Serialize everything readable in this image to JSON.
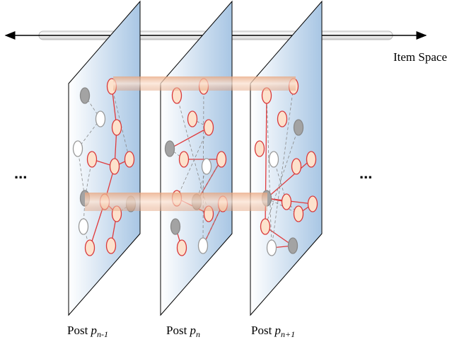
{
  "axis_label": "Item Space",
  "ellipsis_left": "...",
  "ellipsis_right": "...",
  "posts": [
    {
      "text": "Post",
      "symbol": "p",
      "subscript": "n-1"
    },
    {
      "text": "Post",
      "symbol": "p",
      "subscript": "n"
    },
    {
      "text": "Post",
      "symbol": "p",
      "subscript": "n+1"
    }
  ]
}
